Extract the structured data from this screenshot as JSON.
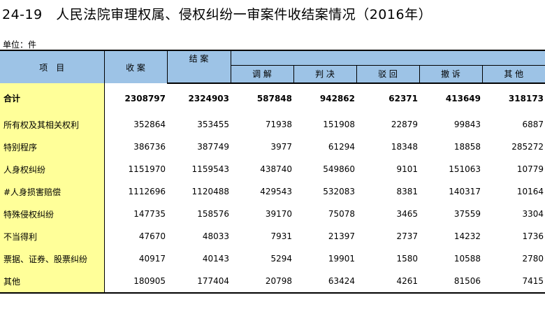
{
  "title": "24-19　人民法院审理权属、侵权纠纷一审案件收结案情况（2016年）",
  "unit": "单位：件",
  "headers": {
    "item": "项　目",
    "received": "收 案",
    "closed": "结 案",
    "mediation": "调 解",
    "judgment": "判 决",
    "rejected": "驳 回",
    "withdrawn": "撤 诉",
    "other": "其 他"
  },
  "rows": [
    {
      "label": "合计",
      "values": [
        "2308797",
        "2324903",
        "587848",
        "942862",
        "62371",
        "413649",
        "318173"
      ]
    },
    {
      "label": "所有权及其相关权利",
      "values": [
        "352864",
        "353455",
        "71938",
        "151908",
        "22879",
        "99843",
        "6887"
      ]
    },
    {
      "label": "特别程序",
      "values": [
        "386736",
        "387749",
        "3977",
        "61294",
        "18348",
        "18858",
        "285272"
      ]
    },
    {
      "label": "人身权纠纷",
      "values": [
        "1151970",
        "1159543",
        "438740",
        "549860",
        "9101",
        "151063",
        "10779"
      ]
    },
    {
      "label": "#人身损害赔偿",
      "values": [
        "1112696",
        "1120488",
        "429543",
        "532083",
        "8381",
        "140317",
        "10164"
      ]
    },
    {
      "label": "特殊侵权纠纷",
      "values": [
        "147735",
        "158576",
        "39170",
        "75078",
        "3465",
        "37559",
        "3304"
      ]
    },
    {
      "label": "不当得利",
      "values": [
        "47670",
        "48033",
        "7931",
        "21397",
        "2737",
        "14232",
        "1736"
      ]
    },
    {
      "label": "票据、证券、股票纠纷",
      "values": [
        "40917",
        "40143",
        "5294",
        "19901",
        "1580",
        "10588",
        "2780"
      ]
    },
    {
      "label": "其他",
      "values": [
        "180905",
        "177404",
        "20798",
        "63424",
        "4261",
        "81506",
        "7415"
      ]
    }
  ]
}
